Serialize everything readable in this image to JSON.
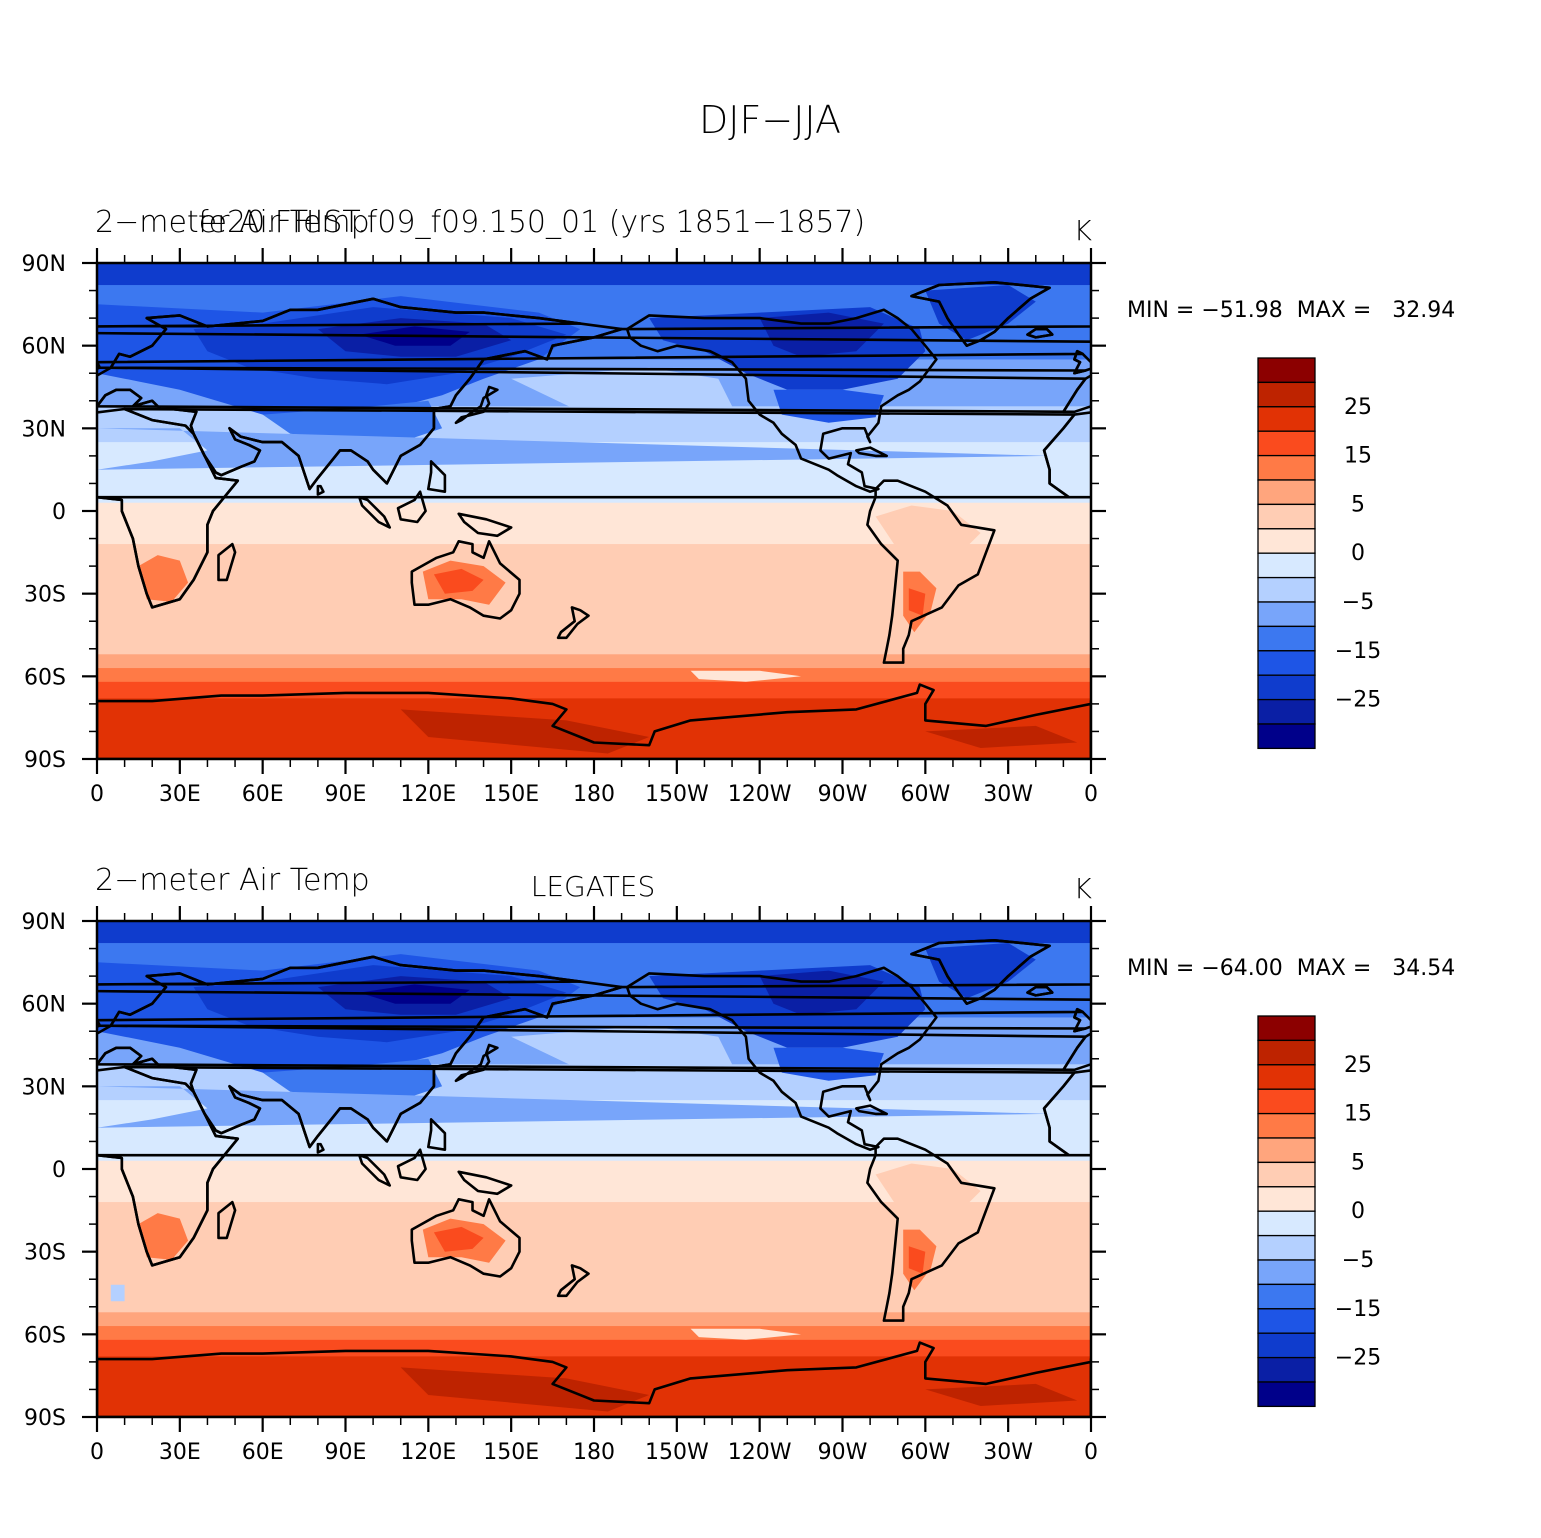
{
  "main_title": "DJF−JJA",
  "colors": {
    "levels_min_to_max": [
      "#00008a",
      "#0a1fa5",
      "#0f3ccd",
      "#1e55e6",
      "#3c78f0",
      "#78a5fa",
      "#b4d0ff",
      "#d7e9ff",
      "#ffe6d7",
      "#ffcdb4",
      "#ffa57d",
      "#ff7a46",
      "#fa4b1e",
      "#e13205",
      "#be2300",
      "#8c0000"
    ]
  },
  "colorbar_ticks": [
    "25",
    "15",
    "5",
    "0",
    "−5",
    "−15",
    "−25"
  ],
  "x_ticks": [
    "0",
    "30E",
    "60E",
    "90E",
    "120E",
    "150E",
    "180",
    "150W",
    "120W",
    "90W",
    "60W",
    "30W",
    "0"
  ],
  "y_ticks": [
    "90N",
    "60N",
    "30N",
    "0",
    "30S",
    "60S",
    "90S"
  ],
  "panels": [
    {
      "left_title": "2−meter Air Temp",
      "center_title": "",
      "overlay_title": "fe20.FHIST.f09_f09.150_01 (yrs 1851−1857)",
      "units": "K",
      "min_max": "MIN = −51.98  MAX =   32.94"
    },
    {
      "left_title": "2−meter Air Temp",
      "center_title": "LEGATES",
      "overlay_title": "",
      "units": "K",
      "min_max": "MIN = −64.00  MAX =   34.54"
    }
  ],
  "chart_data": [
    {
      "type": "heatmap",
      "title": "fe20.FHIST.f09_f09.150_01 (yrs 1851−1857)",
      "subtitle": "2−meter Air Temp",
      "units": "K",
      "season_difference": "DJF−JJA",
      "x_range": [
        "0",
        "0"
      ],
      "y_range": [
        "90S",
        "90N"
      ],
      "min": -51.98,
      "max": 32.94,
      "contour_levels": [
        -30,
        -25,
        -20,
        -15,
        -10,
        -5,
        -2,
        0,
        2,
        5,
        10,
        15,
        20,
        25,
        30
      ]
    },
    {
      "type": "heatmap",
      "title": "LEGATES",
      "subtitle": "2−meter Air Temp",
      "units": "K",
      "season_difference": "DJF−JJA",
      "x_range": [
        "0",
        "0"
      ],
      "y_range": [
        "90S",
        "90N"
      ],
      "min": -64.0,
      "max": 34.54,
      "contour_levels": [
        -30,
        -25,
        -20,
        -15,
        -10,
        -5,
        -2,
        0,
        2,
        5,
        10,
        15,
        20,
        25,
        30
      ]
    }
  ]
}
